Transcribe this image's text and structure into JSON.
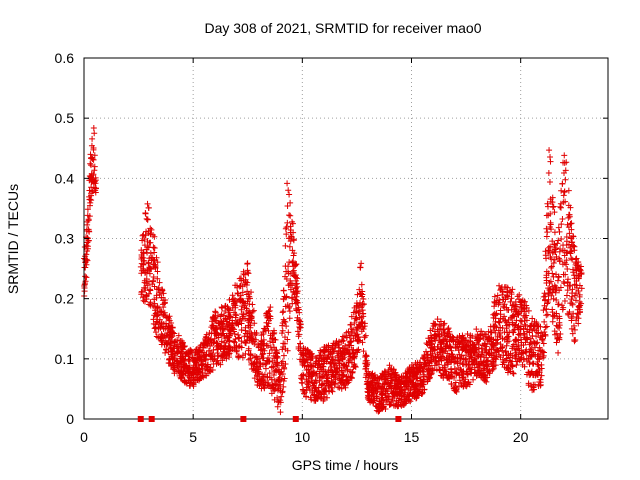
{
  "chart_data": {
    "type": "scatter",
    "title": "Day 308 of 2021, SRMTID for receiver mao0",
    "xlabel": "GPS time / hours",
    "ylabel": "SRMTID / TECUs",
    "xlim": [
      0,
      24
    ],
    "ylim": [
      0,
      0.6
    ],
    "xticks": [
      0,
      5,
      10,
      15,
      20
    ],
    "yticks": [
      0,
      0.1,
      0.2,
      0.3,
      0.4,
      0.5,
      0.6
    ],
    "grid": true,
    "marker": "+",
    "color": "#e00000",
    "gap_markers_x": [
      2.6,
      3.1,
      7.3,
      9.7,
      14.4
    ],
    "envelope": [
      {
        "x": 0.0,
        "lo": 0.19,
        "hi": 0.27
      },
      {
        "x": 0.15,
        "lo": 0.25,
        "hi": 0.33
      },
      {
        "x": 0.3,
        "lo": 0.35,
        "hi": 0.45
      },
      {
        "x": 0.45,
        "lo": 0.38,
        "hi": 0.5
      },
      {
        "x": 0.55,
        "lo": 0.37,
        "hi": 0.4
      },
      {
        "x": 2.6,
        "lo": 0.18,
        "hi": 0.28
      },
      {
        "x": 2.9,
        "lo": 0.2,
        "hi": 0.37
      },
      {
        "x": 3.2,
        "lo": 0.14,
        "hi": 0.31
      },
      {
        "x": 3.5,
        "lo": 0.13,
        "hi": 0.23
      },
      {
        "x": 4.0,
        "lo": 0.08,
        "hi": 0.16
      },
      {
        "x": 4.5,
        "lo": 0.06,
        "hi": 0.13
      },
      {
        "x": 5.0,
        "lo": 0.05,
        "hi": 0.11
      },
      {
        "x": 5.5,
        "lo": 0.07,
        "hi": 0.13
      },
      {
        "x": 6.0,
        "lo": 0.08,
        "hi": 0.18
      },
      {
        "x": 6.5,
        "lo": 0.1,
        "hi": 0.19
      },
      {
        "x": 7.0,
        "lo": 0.1,
        "hi": 0.23
      },
      {
        "x": 7.5,
        "lo": 0.1,
        "hi": 0.26
      },
      {
        "x": 8.0,
        "lo": 0.05,
        "hi": 0.12
      },
      {
        "x": 8.5,
        "lo": 0.05,
        "hi": 0.2
      },
      {
        "x": 9.0,
        "lo": 0.01,
        "hi": 0.08
      },
      {
        "x": 9.3,
        "lo": 0.1,
        "hi": 0.4
      },
      {
        "x": 9.6,
        "lo": 0.2,
        "hi": 0.33
      },
      {
        "x": 10.0,
        "lo": 0.04,
        "hi": 0.12
      },
      {
        "x": 10.5,
        "lo": 0.03,
        "hi": 0.11
      },
      {
        "x": 11.0,
        "lo": 0.03,
        "hi": 0.12
      },
      {
        "x": 11.5,
        "lo": 0.05,
        "hi": 0.13
      },
      {
        "x": 12.0,
        "lo": 0.05,
        "hi": 0.14
      },
      {
        "x": 12.5,
        "lo": 0.08,
        "hi": 0.2
      },
      {
        "x": 12.7,
        "lo": 0.15,
        "hi": 0.27
      },
      {
        "x": 13.0,
        "lo": 0.03,
        "hi": 0.08
      },
      {
        "x": 13.5,
        "lo": 0.01,
        "hi": 0.07
      },
      {
        "x": 14.0,
        "lo": 0.02,
        "hi": 0.09
      },
      {
        "x": 14.5,
        "lo": 0.02,
        "hi": 0.07
      },
      {
        "x": 15.0,
        "lo": 0.03,
        "hi": 0.09
      },
      {
        "x": 15.5,
        "lo": 0.04,
        "hi": 0.1
      },
      {
        "x": 16.0,
        "lo": 0.08,
        "hi": 0.17
      },
      {
        "x": 16.5,
        "lo": 0.06,
        "hi": 0.16
      },
      {
        "x": 17.0,
        "lo": 0.04,
        "hi": 0.14
      },
      {
        "x": 17.5,
        "lo": 0.05,
        "hi": 0.14
      },
      {
        "x": 18.0,
        "lo": 0.07,
        "hi": 0.15
      },
      {
        "x": 18.5,
        "lo": 0.06,
        "hi": 0.14
      },
      {
        "x": 19.0,
        "lo": 0.1,
        "hi": 0.24
      },
      {
        "x": 19.5,
        "lo": 0.06,
        "hi": 0.22
      },
      {
        "x": 20.0,
        "lo": 0.1,
        "hi": 0.21
      },
      {
        "x": 20.5,
        "lo": 0.04,
        "hi": 0.17
      },
      {
        "x": 21.0,
        "lo": 0.05,
        "hi": 0.15
      },
      {
        "x": 21.3,
        "lo": 0.2,
        "hi": 0.46
      },
      {
        "x": 21.7,
        "lo": 0.1,
        "hi": 0.3
      },
      {
        "x": 22.0,
        "lo": 0.2,
        "hi": 0.46
      },
      {
        "x": 22.5,
        "lo": 0.12,
        "hi": 0.28
      },
      {
        "x": 22.8,
        "lo": 0.2,
        "hi": 0.25
      }
    ]
  }
}
